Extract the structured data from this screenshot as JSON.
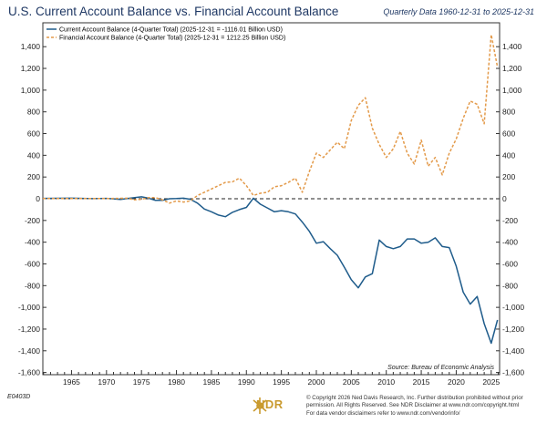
{
  "header": {
    "title": "U.S. Current Account Balance vs. Financial Account Balance",
    "subtitle": "Quarterly Data 1960-12-31 to 2025-12-31"
  },
  "footer": {
    "chart_id": "E0403D",
    "logo_text": "NDR",
    "copyright_lines": [
      "© Copyright 2026 Ned Davis Research, Inc. Further distribution prohibited without prior",
      "permission. All Rights Reserved. See NDR Disclaimer at www.ndr.com/copyright.html",
      "For data vendor disclaimers refer to www.ndr.com/vendorinfo/"
    ]
  },
  "chart_data": {
    "type": "line",
    "legend_position": "top-left",
    "source": "Source: Bureau of Economic Analysis",
    "xlim": [
      1960.9,
      2026.2
    ],
    "ylim": [
      -1620,
      1620
    ],
    "y_ticks": [
      -1600,
      -1400,
      -1200,
      -1000,
      -800,
      -600,
      -400,
      -200,
      0,
      200,
      400,
      600,
      800,
      1000,
      1200,
      1400
    ],
    "y_tick_labels": [
      "-1,600",
      "-1,400",
      "-1,200",
      "-1,000",
      "-800",
      "-600",
      "-400",
      "-200",
      "0",
      "200",
      "400",
      "600",
      "800",
      "1,000",
      "1,200",
      "1,400"
    ],
    "x_ticks": [
      1965,
      1970,
      1975,
      1980,
      1985,
      1990,
      1995,
      2000,
      2005,
      2010,
      2015,
      2020,
      2025
    ],
    "x_tick_labels": [
      "1965",
      "1970",
      "1975",
      "1980",
      "1985",
      "1990",
      "1995",
      "2000",
      "2005",
      "2010",
      "2015",
      "2020",
      "2025"
    ],
    "zero_line": true,
    "grid": false,
    "series": [
      {
        "name": "Current Account Balance (4-Quarter Total) (2025-12-31 = -1116.01 Billion USD)",
        "color": "#1f5c8b",
        "dash": false,
        "points": [
          [
            1960.9,
            3
          ],
          [
            1965,
            5
          ],
          [
            1968,
            1
          ],
          [
            1970,
            3
          ],
          [
            1972,
            -6
          ],
          [
            1973.5,
            7
          ],
          [
            1975,
            18
          ],
          [
            1976,
            5
          ],
          [
            1977,
            -15
          ],
          [
            1978,
            -15
          ],
          [
            1979,
            0
          ],
          [
            1980,
            2
          ],
          [
            1981,
            5
          ],
          [
            1982,
            -5
          ],
          [
            1983,
            -40
          ],
          [
            1984,
            -95
          ],
          [
            1985,
            -120
          ],
          [
            1986,
            -150
          ],
          [
            1987,
            -165
          ],
          [
            1988,
            -125
          ],
          [
            1989,
            -100
          ],
          [
            1990,
            -80
          ],
          [
            1991,
            5
          ],
          [
            1992,
            -50
          ],
          [
            1993,
            -85
          ],
          [
            1994,
            -120
          ],
          [
            1995,
            -110
          ],
          [
            1996,
            -120
          ],
          [
            1997,
            -140
          ],
          [
            1998,
            -215
          ],
          [
            1999,
            -300
          ],
          [
            2000,
            -410
          ],
          [
            2001,
            -395
          ],
          [
            2002,
            -460
          ],
          [
            2003,
            -520
          ],
          [
            2004,
            -630
          ],
          [
            2005,
            -745
          ],
          [
            2006,
            -820
          ],
          [
            2007,
            -720
          ],
          [
            2008,
            -690
          ],
          [
            2009,
            -380
          ],
          [
            2010,
            -440
          ],
          [
            2011,
            -460
          ],
          [
            2012,
            -440
          ],
          [
            2013,
            -370
          ],
          [
            2014,
            -370
          ],
          [
            2015,
            -410
          ],
          [
            2016,
            -400
          ],
          [
            2017,
            -360
          ],
          [
            2018,
            -440
          ],
          [
            2019,
            -450
          ],
          [
            2020,
            -620
          ],
          [
            2021,
            -860
          ],
          [
            2022,
            -970
          ],
          [
            2023,
            -900
          ],
          [
            2024,
            -1150
          ],
          [
            2025,
            -1330
          ],
          [
            2025.9,
            -1116
          ]
        ]
      },
      {
        "name": "Financial Account Balance (4-Quarter Total) (2025-12-31 = 1212.25 Billion USD)",
        "color": "#e39a4a",
        "dash": true,
        "points": [
          [
            1960.9,
            2
          ],
          [
            1965,
            2
          ],
          [
            1970,
            2
          ],
          [
            1973,
            5
          ],
          [
            1974,
            -10
          ],
          [
            1975,
            -5
          ],
          [
            1976,
            10
          ],
          [
            1977,
            10
          ],
          [
            1978,
            -10
          ],
          [
            1979,
            -40
          ],
          [
            1980,
            -20
          ],
          [
            1981,
            -30
          ],
          [
            1982,
            -20
          ],
          [
            1983,
            30
          ],
          [
            1984,
            60
          ],
          [
            1985,
            90
          ],
          [
            1986,
            120
          ],
          [
            1987,
            150
          ],
          [
            1988,
            155
          ],
          [
            1989,
            190
          ],
          [
            1990,
            120
          ],
          [
            1991,
            30
          ],
          [
            1992,
            50
          ],
          [
            1993,
            60
          ],
          [
            1994,
            110
          ],
          [
            1995,
            120
          ],
          [
            1996,
            150
          ],
          [
            1997,
            190
          ],
          [
            1998,
            60
          ],
          [
            1999,
            250
          ],
          [
            2000,
            420
          ],
          [
            2001,
            380
          ],
          [
            2002,
            450
          ],
          [
            2003,
            520
          ],
          [
            2004,
            460
          ],
          [
            2005,
            720
          ],
          [
            2006,
            860
          ],
          [
            2007,
            930
          ],
          [
            2008,
            650
          ],
          [
            2009,
            500
          ],
          [
            2010,
            380
          ],
          [
            2011,
            460
          ],
          [
            2012,
            620
          ],
          [
            2013,
            420
          ],
          [
            2014,
            320
          ],
          [
            2015,
            540
          ],
          [
            2016,
            300
          ],
          [
            2017,
            380
          ],
          [
            2018,
            220
          ],
          [
            2019,
            420
          ],
          [
            2020,
            550
          ],
          [
            2021,
            740
          ],
          [
            2022,
            900
          ],
          [
            2023,
            870
          ],
          [
            2024,
            690
          ],
          [
            2025,
            1510
          ],
          [
            2025.9,
            1212
          ]
        ]
      }
    ]
  }
}
